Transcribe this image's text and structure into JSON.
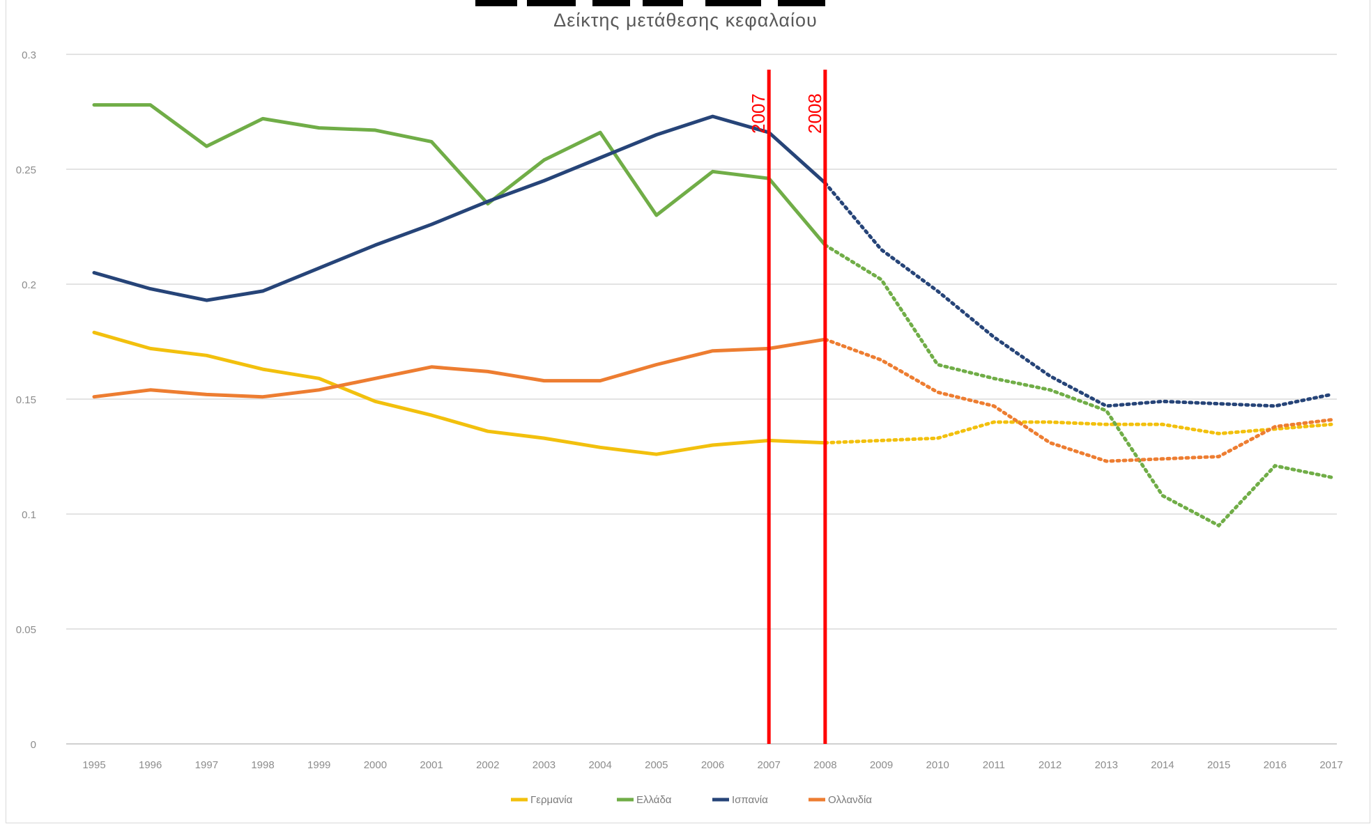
{
  "chart_data": {
    "type": "line",
    "title": "Δείκτης μετάθεσης κεφαλαίου",
    "xlabel": "",
    "ylabel": "",
    "ylim": [
      0,
      0.3
    ],
    "yticks": [
      "0",
      "0.05",
      "0.1",
      "0.15",
      "0.2",
      "0.25",
      "0.3"
    ],
    "categories": [
      "1995",
      "1996",
      "1997",
      "1998",
      "1999",
      "2000",
      "2001",
      "2002",
      "2003",
      "2004",
      "2005",
      "2006",
      "2007",
      "2008",
      "2009",
      "2010",
      "2011",
      "2012",
      "2013",
      "2014",
      "2015",
      "2016",
      "2017"
    ],
    "grid": true,
    "legend_position": "bottom",
    "series": [
      {
        "name": "Γερμανία",
        "color": "#f2c00d",
        "values": [
          0.179,
          0.172,
          0.169,
          0.163,
          0.159,
          0.149,
          0.143,
          0.136,
          0.133,
          0.129,
          0.126,
          0.13,
          0.132,
          0.131,
          0.132,
          0.133,
          0.14,
          0.14,
          0.139,
          0.139,
          0.135,
          0.137,
          0.139
        ],
        "solid_until": "2008",
        "dotted_from": "2008"
      },
      {
        "name": "Ελλάδα",
        "color": "#70ad47",
        "values": [
          0.278,
          0.278,
          0.26,
          0.272,
          0.268,
          0.267,
          0.262,
          0.235,
          0.254,
          0.266,
          0.23,
          0.249,
          0.246,
          0.217,
          0.202,
          0.165,
          0.159,
          0.154,
          0.145,
          0.108,
          0.095,
          0.121,
          0.116
        ],
        "solid_until": "2008",
        "dotted_from": "2008"
      },
      {
        "name": "Ισπανία",
        "color": "#264478",
        "values": [
          0.205,
          0.198,
          0.193,
          0.197,
          0.207,
          0.217,
          0.226,
          0.236,
          0.245,
          0.255,
          0.265,
          0.273,
          0.266,
          0.244,
          0.215,
          0.197,
          0.177,
          0.16,
          0.147,
          0.149,
          0.148,
          0.147,
          0.152
        ],
        "solid_until": "2008",
        "dotted_from": "2008"
      },
      {
        "name": "Ολλανδία",
        "color": "#ed7d31",
        "values": [
          0.151,
          0.154,
          0.152,
          0.151,
          0.154,
          0.159,
          0.164,
          0.162,
          0.158,
          0.158,
          0.165,
          0.171,
          0.172,
          0.176,
          0.167,
          0.153,
          0.147,
          0.131,
          0.123,
          0.124,
          0.125,
          0.138,
          0.141
        ],
        "solid_until": "2008",
        "dotted_from": "2008"
      }
    ],
    "annotations": [
      {
        "label": "2007",
        "x": "2007",
        "color": "#ff0000"
      },
      {
        "label": "2008",
        "x": "2008",
        "color": "#ff0000"
      }
    ]
  }
}
